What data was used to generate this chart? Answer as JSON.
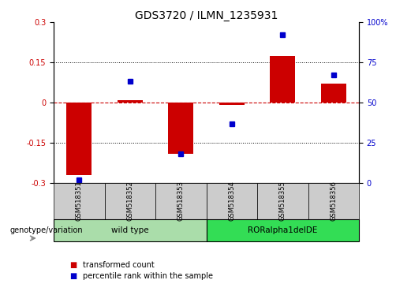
{
  "title": "GDS3720 / ILMN_1235931",
  "samples": [
    "GSM518351",
    "GSM518352",
    "GSM518353",
    "GSM518354",
    "GSM518355",
    "GSM518356"
  ],
  "transformed_count": [
    -0.27,
    0.01,
    -0.19,
    -0.01,
    0.175,
    0.07
  ],
  "percentile_rank": [
    2,
    63,
    18,
    37,
    92,
    67
  ],
  "ylim_left": [
    -0.3,
    0.3
  ],
  "ylim_right": [
    0,
    100
  ],
  "yticks_left": [
    -0.3,
    -0.15,
    0,
    0.15,
    0.3
  ],
  "yticks_right": [
    0,
    25,
    50,
    75,
    100
  ],
  "groups": [
    {
      "label": "wild type",
      "indices": [
        0,
        1,
        2
      ],
      "color": "#AADDAA"
    },
    {
      "label": "RORalpha1delDE",
      "indices": [
        3,
        4,
        5
      ],
      "color": "#33DD55"
    }
  ],
  "group_label": "genotype/variation",
  "bar_color": "#CC0000",
  "dot_color": "#0000CC",
  "zero_line_color": "#CC0000",
  "grid_color": "#000000",
  "bg_color": "#FFFFFF",
  "plot_bg": "#FFFFFF",
  "sample_box_color": "#CCCCCC",
  "legend_bar_label": "transformed count",
  "legend_dot_label": "percentile rank within the sample",
  "title_fontsize": 10,
  "tick_fontsize": 7,
  "label_fontsize": 7,
  "bar_width": 0.5
}
